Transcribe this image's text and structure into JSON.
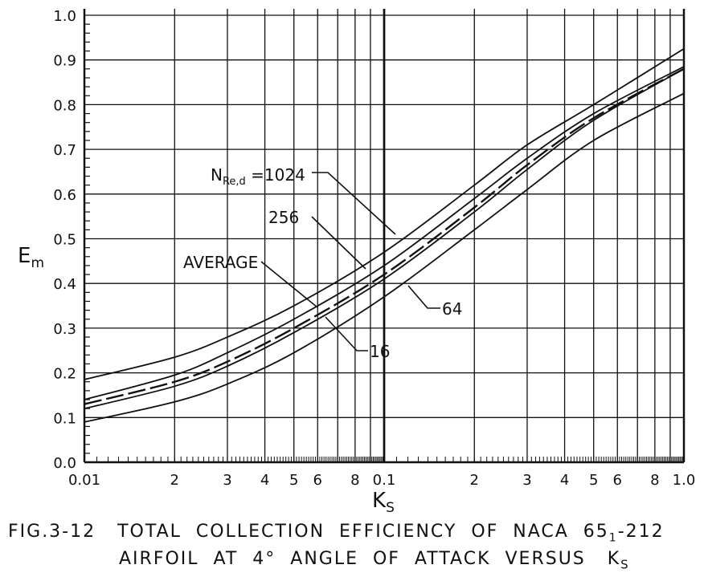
{
  "chart_data": {
    "type": "line",
    "xlabel": "K",
    "xlabel_sub": "S",
    "ylabel": "E",
    "ylabel_sub": "m",
    "x_scale": "log",
    "xlim": [
      0.01,
      1.0
    ],
    "ylim": [
      0.0,
      1.0
    ],
    "grid": true,
    "y_ticks": [
      "0.0",
      "0.1",
      "0.2",
      "0.3",
      "0.4",
      "0.5",
      "0.6",
      "0.7",
      "0.8",
      "0.9",
      "1.0"
    ],
    "x_ticks": [
      {
        "v": 0.01,
        "label": "0.01"
      },
      {
        "v": 0.02,
        "label": "2"
      },
      {
        "v": 0.03,
        "label": "3"
      },
      {
        "v": 0.04,
        "label": "4"
      },
      {
        "v": 0.05,
        "label": "5"
      },
      {
        "v": 0.06,
        "label": "6"
      },
      {
        "v": 0.08,
        "label": "8"
      },
      {
        "v": 0.1,
        "label": "0.1"
      },
      {
        "v": 0.2,
        "label": "2"
      },
      {
        "v": 0.3,
        "label": "3"
      },
      {
        "v": 0.4,
        "label": "4"
      },
      {
        "v": 0.5,
        "label": "5"
      },
      {
        "v": 0.6,
        "label": "6"
      },
      {
        "v": 0.8,
        "label": "8"
      },
      {
        "v": 1.0,
        "label": "1.0"
      }
    ],
    "x": [
      0.01,
      0.02,
      0.03,
      0.05,
      0.1,
      0.2,
      0.3,
      0.5,
      1.0
    ],
    "series": [
      {
        "name": "1024",
        "values": [
          0.185,
          0.235,
          0.28,
          0.35,
          0.47,
          0.62,
          0.71,
          0.8,
          0.925
        ],
        "dashed": false
      },
      {
        "name": "256",
        "values": [
          0.14,
          0.195,
          0.245,
          0.32,
          0.44,
          0.59,
          0.68,
          0.78,
          0.885
        ],
        "dashed": false
      },
      {
        "name": "AVERAGE",
        "values": [
          0.13,
          0.18,
          0.225,
          0.3,
          0.42,
          0.57,
          0.665,
          0.77,
          0.88
        ],
        "dashed": true
      },
      {
        "name": "16",
        "values": [
          0.12,
          0.17,
          0.215,
          0.29,
          0.41,
          0.56,
          0.655,
          0.765,
          0.88
        ],
        "dashed": false
      },
      {
        "name": "64",
        "values": [
          0.09,
          0.135,
          0.175,
          0.245,
          0.37,
          0.52,
          0.61,
          0.72,
          0.825
        ],
        "dashed": false
      }
    ],
    "annotations": {
      "n_label": "N",
      "n_sub": "Re,d",
      "n_value": " =1024",
      "l256": "256",
      "average": "AVERAGE",
      "l16": "16",
      "l64": "64"
    }
  },
  "caption": {
    "line1": "FIG.3-12   TOTAL  COLLECTION  EFFICIENCY  OF  NACA  65",
    "line1_sub": "1",
    "line1_end": "-212",
    "line2": "AIRFOIL  AT  4°  ANGLE  OF  ATTACK  VERSUS   K",
    "line2_sub": "S"
  }
}
